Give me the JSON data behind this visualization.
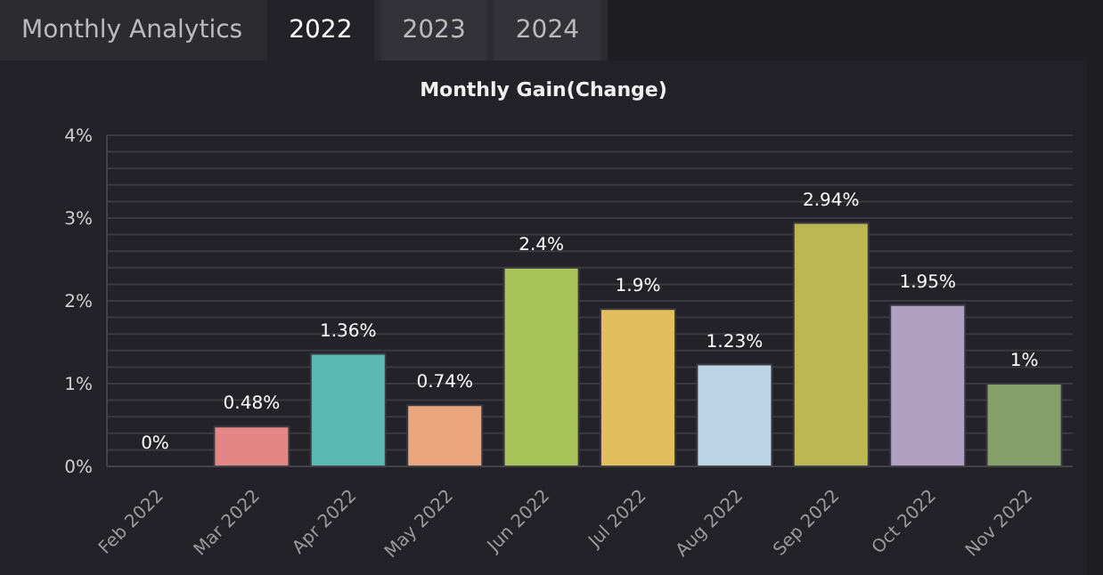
{
  "chart_data": {
    "type": "bar",
    "title": "Monthly Gain(Change)",
    "annotations": [
      "Monthly Analytics",
      "2022",
      "2023",
      "2024"
    ],
    "categories": [
      "Feb 2022",
      "Mar 2022",
      "Apr 2022",
      "May 2022",
      "Jun 2022",
      "Jul 2022",
      "Aug 2022",
      "Sep 2022",
      "Oct 2022",
      "Nov 2022"
    ],
    "values": [
      0,
      0.48,
      1.36,
      0.74,
      2.4,
      1.9,
      1.23,
      2.94,
      1.95,
      1
    ],
    "value_labels": [
      "0%",
      "0.48%",
      "1.36%",
      "0.74%",
      "2.4%",
      "1.9%",
      "1.23%",
      "2.94%",
      "1.95%",
      "1%"
    ],
    "colors": [
      "#7f9fcf",
      "#e48686",
      "#5bb8b5",
      "#e9a67f",
      "#a8c35a",
      "#e2bf5c",
      "#bcd4e6",
      "#bcb654",
      "#b0a0c2",
      "#849f6a"
    ],
    "ylim": [
      0,
      4
    ],
    "yticks": [
      {
        "value": 0,
        "label": "0%"
      },
      {
        "value": 0.2,
        "label": null
      },
      {
        "value": 0.4,
        "label": null
      },
      {
        "value": 0.6,
        "label": null
      },
      {
        "value": 0.8,
        "label": null
      },
      {
        "value": 1,
        "label": "1%"
      },
      {
        "value": 1.2,
        "label": null
      },
      {
        "value": 1.4,
        "label": null
      },
      {
        "value": 1.6,
        "label": null
      },
      {
        "value": 1.8,
        "label": null
      },
      {
        "value": 2,
        "label": "2%"
      },
      {
        "value": 2.2,
        "label": null
      },
      {
        "value": 2.4,
        "label": null
      },
      {
        "value": 2.6,
        "label": null
      },
      {
        "value": 2.8,
        "label": null
      },
      {
        "value": 3,
        "label": "3%"
      },
      {
        "value": 3.2,
        "label": null
      },
      {
        "value": 3.4,
        "label": null
      },
      {
        "value": 3.6,
        "label": null
      },
      {
        "value": 3.8,
        "label": null
      },
      {
        "value": 4,
        "label": "4%"
      }
    ],
    "grid": "y",
    "legend": false
  }
}
